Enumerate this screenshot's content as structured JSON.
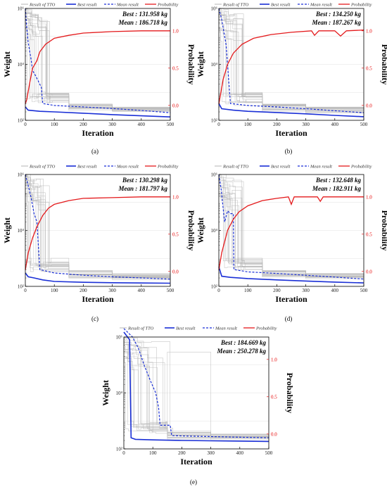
{
  "figure": {
    "legend": {
      "tto_label": "Result of TTO",
      "best_label": "Best result",
      "mean_label": "Mean result",
      "prob_label": "Probability"
    },
    "colors": {
      "tto": "#b5b5b5",
      "best": "#1a2fd6",
      "mean": "#1a2fd6",
      "prob": "#e41a1c",
      "right_axis": "#e41a1c"
    }
  },
  "chart_data": [
    {
      "type": "line",
      "caption": "(a)",
      "xlabel": "Iteration",
      "ylabel": "Weight",
      "y2label": "Probability",
      "xlim": [
        0,
        500
      ],
      "xticks": [
        "0",
        "100",
        "200",
        "300",
        "400",
        "500"
      ],
      "ylim_log10": [
        2,
        6
      ],
      "yticks": [
        "10²",
        "10⁴",
        "10⁶"
      ],
      "y2lim": [
        -0.2,
        1.3
      ],
      "y2ticks": [
        "0.0",
        "0.5",
        "1.0"
      ],
      "best_text": "Best : 131.958 kg",
      "mean_text": "Mean : 186.718 kg",
      "series": [
        {
          "name": "Best result",
          "points": [
            [
              0,
              300
            ],
            [
              10,
              230
            ],
            [
              50,
              210
            ],
            [
              100,
              200
            ],
            [
              200,
              180
            ],
            [
              300,
              160
            ],
            [
              400,
              145
            ],
            [
              500,
              132
            ]
          ]
        },
        {
          "name": "Mean result",
          "points": [
            [
              0,
              1000000
            ],
            [
              5,
              200000
            ],
            [
              10,
              60000
            ],
            [
              20,
              15000
            ],
            [
              25,
              6000
            ],
            [
              35,
              4000
            ],
            [
              45,
              2500
            ],
            [
              55,
              1500
            ],
            [
              60,
              400
            ],
            [
              100,
              340
            ],
            [
              200,
              300
            ],
            [
              300,
              265
            ],
            [
              400,
              225
            ],
            [
              500,
              187
            ]
          ]
        },
        {
          "name": "Probability",
          "points": [
            [
              0,
              0.02
            ],
            [
              5,
              0.08
            ],
            [
              15,
              0.3
            ],
            [
              25,
              0.5
            ],
            [
              40,
              0.6
            ],
            [
              50,
              0.72
            ],
            [
              70,
              0.82
            ],
            [
              100,
              0.9
            ],
            [
              150,
              0.94
            ],
            [
              200,
              0.97
            ],
            [
              300,
              0.99
            ],
            [
              400,
              1.0
            ],
            [
              500,
              1.0
            ]
          ]
        }
      ]
    },
    {
      "type": "line",
      "caption": "(b)",
      "xlabel": "Iteration",
      "ylabel": "Weight",
      "y2label": "Probability",
      "xlim": [
        0,
        500
      ],
      "xticks": [
        "0",
        "100",
        "200",
        "300",
        "400",
        "500"
      ],
      "ylim_log10": [
        2,
        6
      ],
      "yticks": [
        "10²",
        "10⁴",
        "10⁶"
      ],
      "y2lim": [
        -0.2,
        1.3
      ],
      "y2ticks": [
        "0.0",
        "0.5",
        "1.0"
      ],
      "best_text": "Best : 134.250 kg",
      "mean_text": "Mean : 187.267 kg",
      "series": [
        {
          "name": "Best result",
          "points": [
            [
              0,
              400
            ],
            [
              10,
              260
            ],
            [
              50,
              230
            ],
            [
              100,
              210
            ],
            [
              200,
              190
            ],
            [
              300,
              170
            ],
            [
              400,
              150
            ],
            [
              500,
              134
            ]
          ]
        },
        {
          "name": "Mean result",
          "points": [
            [
              0,
              1000000
            ],
            [
              10,
              400000
            ],
            [
              25,
              50000
            ],
            [
              30,
              10000
            ],
            [
              35,
              2000
            ],
            [
              40,
              400
            ],
            [
              100,
              340
            ],
            [
              200,
              300
            ],
            [
              300,
              260
            ],
            [
              400,
              220
            ],
            [
              500,
              187
            ]
          ]
        },
        {
          "name": "Probability",
          "points": [
            [
              0,
              0.02
            ],
            [
              15,
              0.35
            ],
            [
              30,
              0.55
            ],
            [
              50,
              0.7
            ],
            [
              80,
              0.82
            ],
            [
              120,
              0.9
            ],
            [
              180,
              0.95
            ],
            [
              250,
              0.98
            ],
            [
              320,
              1.0
            ],
            [
              330,
              0.94
            ],
            [
              345,
              1.0
            ],
            [
              400,
              1.0
            ],
            [
              420,
              0.93
            ],
            [
              440,
              1.0
            ],
            [
              500,
              1.01
            ]
          ]
        }
      ]
    },
    {
      "type": "line",
      "caption": "(c)",
      "xlabel": "Iteration",
      "ylabel": "Weight",
      "y2label": "Probability",
      "xlim": [
        0,
        500
      ],
      "xticks": [
        "0",
        "100",
        "200",
        "300",
        "400",
        "500"
      ],
      "ylim_log10": [
        2,
        6
      ],
      "yticks": [
        "10²",
        "10⁴",
        "10⁶"
      ],
      "y2lim": [
        -0.2,
        1.3
      ],
      "y2ticks": [
        "0.0",
        "0.5",
        "1.0"
      ],
      "best_text": "Best : 130.298 kg",
      "mean_text": "Mean : 181.797 kg",
      "series": [
        {
          "name": "Best result",
          "points": [
            [
              0,
              300
            ],
            [
              10,
              220
            ],
            [
              30,
              200
            ],
            [
              60,
              170
            ],
            [
              100,
              150
            ],
            [
              200,
              140
            ],
            [
              300,
              135
            ],
            [
              400,
              132
            ],
            [
              500,
              130
            ]
          ]
        },
        {
          "name": "Mean result",
          "points": [
            [
              0,
              1000000
            ],
            [
              10,
              400000
            ],
            [
              20,
              150000
            ],
            [
              30,
              40000
            ],
            [
              40,
              20000
            ],
            [
              50,
              400
            ],
            [
              100,
              300
            ],
            [
              200,
              250
            ],
            [
              300,
              220
            ],
            [
              400,
              200
            ],
            [
              500,
              182
            ]
          ]
        },
        {
          "name": "Probability",
          "points": [
            [
              0,
              0.02
            ],
            [
              10,
              0.25
            ],
            [
              25,
              0.45
            ],
            [
              40,
              0.6
            ],
            [
              60,
              0.75
            ],
            [
              80,
              0.85
            ],
            [
              100,
              0.9
            ],
            [
              150,
              0.95
            ],
            [
              200,
              0.98
            ],
            [
              300,
              0.99
            ],
            [
              400,
              1.0
            ],
            [
              500,
              1.0
            ]
          ]
        }
      ]
    },
    {
      "type": "line",
      "caption": "(d)",
      "xlabel": "Iteration",
      "ylabel": "Weight",
      "y2label": "Probability",
      "xlim": [
        0,
        500
      ],
      "xticks": [
        "0",
        "100",
        "200",
        "300",
        "400",
        "500"
      ],
      "ylim_log10": [
        2,
        6
      ],
      "yticks": [
        "10²",
        "10⁴",
        "10⁶"
      ],
      "y2lim": [
        -0.2,
        1.3
      ],
      "y2ticks": [
        "0.0",
        "0.5",
        "1.0"
      ],
      "best_text": "Best : 132.648 kg",
      "mean_text": "Mean : 182.911 kg",
      "series": [
        {
          "name": "Best result",
          "points": [
            [
              0,
              500
            ],
            [
              10,
              230
            ],
            [
              40,
              210
            ],
            [
              100,
              190
            ],
            [
              200,
              170
            ],
            [
              300,
              155
            ],
            [
              400,
              142
            ],
            [
              500,
              133
            ]
          ]
        },
        {
          "name": "Mean result",
          "points": [
            [
              0,
              1000000
            ],
            [
              8,
              300000
            ],
            [
              15,
              60000
            ],
            [
              20,
              20000
            ],
            [
              30,
              50000
            ],
            [
              40,
              40000
            ],
            [
              50,
              40000
            ],
            [
              52,
              400
            ],
            [
              100,
              330
            ],
            [
              200,
              290
            ],
            [
              300,
              250
            ],
            [
              400,
              215
            ],
            [
              500,
              183
            ]
          ]
        },
        {
          "name": "Probability",
          "points": [
            [
              0,
              0.02
            ],
            [
              10,
              0.25
            ],
            [
              30,
              0.55
            ],
            [
              50,
              0.7
            ],
            [
              70,
              0.8
            ],
            [
              100,
              0.88
            ],
            [
              150,
              0.95
            ],
            [
              200,
              0.98
            ],
            [
              240,
              1.0
            ],
            [
              250,
              0.9
            ],
            [
              260,
              1.0
            ],
            [
              340,
              1.0
            ],
            [
              350,
              0.94
            ],
            [
              360,
              1.0
            ],
            [
              500,
              1.0
            ]
          ]
        }
      ]
    },
    {
      "type": "line",
      "caption": "(e)",
      "xlabel": "Iteration",
      "ylabel": "Weight",
      "y2label": "Probability",
      "xlim": [
        0,
        500
      ],
      "xticks": [
        "0",
        "100",
        "200",
        "300",
        "400",
        "500"
      ],
      "ylim_log10": [
        2,
        6
      ],
      "yticks": [
        "10²",
        "10⁴",
        "10⁶"
      ],
      "y2lim": [
        -0.2,
        1.3
      ],
      "y2ticks": [
        "0.0",
        "0.5",
        "1.0"
      ],
      "best_text": "Best : 184.669 kg",
      "mean_text": "Mean : 250.278 kg",
      "series": [
        {
          "name": "Best result",
          "points": [
            [
              0,
              1500000
            ],
            [
              20,
              800000
            ],
            [
              25,
              250
            ],
            [
              40,
              220
            ],
            [
              100,
              210
            ],
            [
              200,
              200
            ],
            [
              300,
              195
            ],
            [
              400,
              190
            ],
            [
              500,
              185
            ]
          ]
        },
        {
          "name": "Mean result",
          "points": [
            [
              0,
              2000000
            ],
            [
              30,
              1000000
            ],
            [
              50,
              400000
            ],
            [
              70,
              100000
            ],
            [
              90,
              30000
            ],
            [
              110,
              10000
            ],
            [
              120,
              3000
            ],
            [
              125,
              700
            ],
            [
              160,
              700
            ],
            [
              165,
              300
            ],
            [
              200,
              290
            ],
            [
              300,
              275
            ],
            [
              400,
              262
            ],
            [
              500,
              250
            ]
          ]
        }
      ]
    }
  ]
}
